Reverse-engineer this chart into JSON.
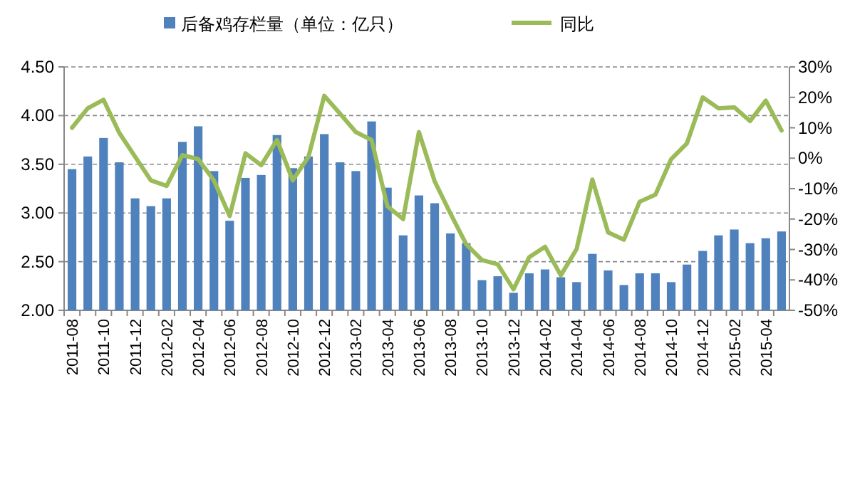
{
  "chart_data": {
    "type": "bar",
    "categories": [
      "2011-08",
      null,
      "2011-10",
      null,
      "2011-12",
      null,
      "2012-02",
      null,
      "2012-04",
      null,
      "2012-06",
      null,
      "2012-08",
      null,
      "2012-10",
      null,
      "2012-12",
      null,
      "2013-02",
      null,
      "2013-04",
      null,
      "2013-06",
      null,
      "2013-08",
      null,
      "2013-10",
      null,
      "2013-12",
      null,
      "2014-02",
      null,
      "2014-04",
      null,
      "2014-06",
      null,
      "2014-08",
      null,
      "2014-10",
      null,
      "2014-12",
      null,
      "2015-02",
      null,
      "2015-04",
      null
    ],
    "series": [
      {
        "name": "后备鸡存栏量（单位：亿只）",
        "color": "#4f81bd",
        "values": [
          3.45,
          3.58,
          3.77,
          3.52,
          3.15,
          3.07,
          3.15,
          3.73,
          3.89,
          3.43,
          2.92,
          3.36,
          3.39,
          3.8,
          3.46,
          3.58,
          3.81,
          3.52,
          3.43,
          3.94,
          3.26,
          2.77,
          3.18,
          3.1,
          2.79,
          2.69,
          2.31,
          2.35,
          2.18,
          2.38,
          2.42,
          2.34,
          2.29,
          2.58,
          2.41,
          2.26,
          2.38,
          2.38,
          2.29,
          2.47,
          2.61,
          2.77,
          2.83,
          2.69,
          2.74,
          2.81
        ]
      },
      {
        "name": "同比",
        "type": "line",
        "axis": "y2",
        "color": "#9bbb59",
        "values": [
          10,
          16.4,
          19.2,
          8.3,
          0.5,
          -7.3,
          -9.1,
          1,
          -0.3,
          -7.3,
          -19,
          1.6,
          -2.3,
          6,
          -7.3,
          0.5,
          20.5,
          14.6,
          8.6,
          6,
          -15.8,
          -20,
          8.6,
          -7.6,
          -18.2,
          -28.3,
          -33.5,
          -34.9,
          -43.1,
          -32.5,
          -29.1,
          -38.5,
          -29.9,
          -7,
          -24.4,
          -26.8,
          -14.3,
          -12,
          -0.3,
          4.9,
          20,
          16.4,
          16.7,
          12.2,
          18.9,
          9.1
        ]
      }
    ],
    "ylim": [
      2,
      4.5
    ],
    "yticks": [
      {
        "value": 2,
        "label": "2.00"
      },
      {
        "value": 2.5,
        "label": "2.50"
      },
      {
        "value": 3,
        "label": "3.00"
      },
      {
        "value": 3.5,
        "label": "3.50"
      },
      {
        "value": 4,
        "label": "4.00"
      },
      {
        "value": 4.5,
        "label": "4.50"
      }
    ],
    "y2lim": [
      -50,
      30
    ],
    "y2ticks": [
      {
        "value": -50,
        "label": "-50%"
      },
      {
        "value": -40,
        "label": "-40%"
      },
      {
        "value": -30,
        "label": "-30%"
      },
      {
        "value": -20,
        "label": "-20%"
      },
      {
        "value": -10,
        "label": "-10%"
      },
      {
        "value": 0,
        "label": "0%"
      },
      {
        "value": 10,
        "label": "10%"
      },
      {
        "value": 20,
        "label": "20%"
      },
      {
        "value": 30,
        "label": "30%"
      }
    ],
    "grid": "y",
    "legend": "top"
  }
}
